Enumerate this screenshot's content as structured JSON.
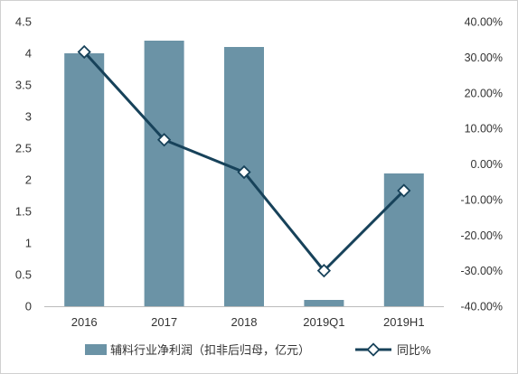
{
  "chart_data": {
    "type": "bar",
    "categories": [
      "2016",
      "2017",
      "2018",
      "2019Q1",
      "2019H1"
    ],
    "series": [
      {
        "name": "辅料行业净利润（扣非后归母，亿元）",
        "type": "bar",
        "axis": "left",
        "values": [
          4.0,
          4.2,
          4.1,
          0.1,
          2.1
        ]
      },
      {
        "name": "同比%",
        "type": "line",
        "axis": "right",
        "values": [
          31.5,
          6.8,
          -2.3,
          -30.0,
          -7.5
        ]
      }
    ],
    "left_axis": {
      "ylim": [
        0,
        4.5
      ],
      "ticks": [
        "0",
        "0.5",
        "1",
        "1.5",
        "2",
        "2.5",
        "3",
        "3.5",
        "4",
        "4.5"
      ]
    },
    "right_axis": {
      "ylim": [
        -40,
        40
      ],
      "ticks": [
        "-40.00%",
        "-30.00%",
        "-20.00%",
        "-10.00%",
        "0.00%",
        "10.00%",
        "20.00%",
        "30.00%",
        "40.00%"
      ]
    },
    "grid": false,
    "legend_position": "bottom",
    "colors": {
      "bar": "#6b93a6",
      "line": "#17425a",
      "marker_fill": "#ffffff",
      "text": "#333333",
      "axis": "#bbbbbb"
    }
  }
}
